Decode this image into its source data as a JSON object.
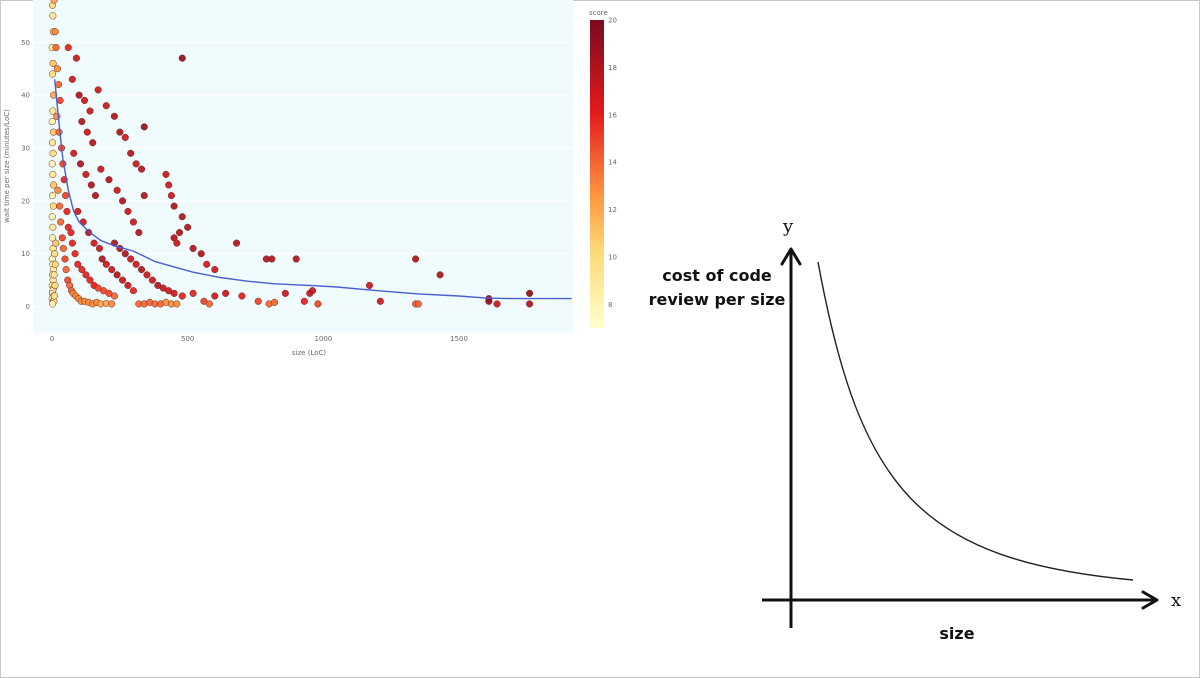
{
  "chart_data": [
    {
      "type": "scatter",
      "xlabel": "size (LoC)",
      "ylabel": "wait time per size (minutes/LoC)",
      "xlim": [
        -70,
        1920
      ],
      "ylim": [
        -5,
        58
      ],
      "x_ticks": [
        "0",
        "500",
        "1000",
        "1500"
      ],
      "x_tick_values": [
        0,
        500,
        1000,
        1500
      ],
      "y_ticks": [
        "0",
        "10",
        "20",
        "30",
        "40",
        "50"
      ],
      "y_tick_values": [
        0,
        10,
        20,
        30,
        40,
        50
      ],
      "colorbar": {
        "title": "score",
        "range": [
          7,
          20
        ],
        "ticks": [
          "8",
          "10",
          "12",
          "14",
          "16",
          "18",
          "20"
        ],
        "tick_values": [
          8,
          10,
          12,
          14,
          16,
          18,
          20
        ]
      },
      "background": "#f0fbfd",
      "trend_color": "#4a5fd0",
      "trend": {
        "x": [
          10,
          25,
          40,
          60,
          80,
          100,
          140,
          180,
          230,
          300,
          380,
          450,
          520,
          620,
          720,
          820,
          950,
          1050,
          1200,
          1350,
          1500,
          1600,
          1700,
          1800,
          1915
        ],
        "y": [
          43,
          35,
          28,
          22,
          18,
          16,
          14,
          12.5,
          11.5,
          10.5,
          8.5,
          7.5,
          6.5,
          5.5,
          4.8,
          4.3,
          4,
          3.7,
          3,
          2.4,
          2,
          1.6,
          1.5,
          1.5,
          1.5
        ]
      },
      "points": [
        [
          2,
          57,
          10
        ],
        [
          3,
          55,
          9
        ],
        [
          5,
          52,
          11
        ],
        [
          1,
          49,
          9
        ],
        [
          4,
          46,
          11
        ],
        [
          2,
          44,
          10
        ],
        [
          6,
          40,
          12
        ],
        [
          3,
          37,
          9
        ],
        [
          1,
          35,
          8
        ],
        [
          5,
          33,
          11
        ],
        [
          2,
          31,
          9
        ],
        [
          4,
          29,
          10
        ],
        [
          1,
          27,
          8
        ],
        [
          3,
          25,
          9
        ],
        [
          6,
          23,
          11
        ],
        [
          2,
          21,
          8
        ],
        [
          5,
          19,
          10
        ],
        [
          1,
          17,
          8
        ],
        [
          3,
          15,
          9
        ],
        [
          2,
          13,
          8
        ],
        [
          4,
          11,
          9
        ],
        [
          1,
          9,
          8
        ],
        [
          3,
          8,
          8
        ],
        [
          5,
          7,
          9
        ],
        [
          2,
          6,
          8
        ],
        [
          4,
          5,
          9
        ],
        [
          1,
          4,
          8
        ],
        [
          6,
          3.5,
          9
        ],
        [
          3,
          3,
          8
        ],
        [
          2,
          2.5,
          8
        ],
        [
          5,
          2,
          9
        ],
        [
          1,
          1.5,
          8
        ],
        [
          4,
          1,
          8
        ],
        [
          7,
          1,
          9
        ],
        [
          2,
          0.5,
          8
        ],
        [
          9,
          2,
          9
        ],
        [
          11,
          4,
          10
        ],
        [
          8,
          6,
          9
        ],
        [
          12,
          8,
          10
        ],
        [
          10,
          10,
          10
        ],
        [
          14,
          12,
          11
        ],
        [
          8,
          58,
          12
        ],
        [
          12,
          52,
          13
        ],
        [
          15,
          49,
          14
        ],
        [
          20,
          45,
          13
        ],
        [
          24,
          42,
          14
        ],
        [
          30,
          39,
          15
        ],
        [
          18,
          36,
          13
        ],
        [
          26,
          33,
          14
        ],
        [
          35,
          30,
          15
        ],
        [
          40,
          27,
          15
        ],
        [
          45,
          24,
          16
        ],
        [
          22,
          22,
          13
        ],
        [
          50,
          21,
          15
        ],
        [
          28,
          19,
          14
        ],
        [
          55,
          18,
          16
        ],
        [
          32,
          16,
          14
        ],
        [
          60,
          15,
          16
        ],
        [
          38,
          13,
          15
        ],
        [
          70,
          14,
          16
        ],
        [
          42,
          11,
          14
        ],
        [
          75,
          12,
          16
        ],
        [
          48,
          9,
          15
        ],
        [
          85,
          10,
          16
        ],
        [
          52,
          7,
          14
        ],
        [
          95,
          8,
          16
        ],
        [
          58,
          5,
          15
        ],
        [
          110,
          7,
          16
        ],
        [
          65,
          4,
          14
        ],
        [
          125,
          6,
          16
        ],
        [
          72,
          3,
          14
        ],
        [
          140,
          5,
          16
        ],
        [
          78,
          2.5,
          13
        ],
        [
          155,
          4,
          16
        ],
        [
          88,
          2,
          13
        ],
        [
          170,
          3.5,
          15
        ],
        [
          98,
          1.5,
          13
        ],
        [
          190,
          3,
          15
        ],
        [
          108,
          1,
          13
        ],
        [
          210,
          2.5,
          15
        ],
        [
          120,
          1,
          13
        ],
        [
          230,
          2,
          14
        ],
        [
          135,
          0.8,
          13
        ],
        [
          150,
          0.5,
          13
        ],
        [
          165,
          0.8,
          13
        ],
        [
          180,
          0.5,
          12
        ],
        [
          200,
          0.6,
          12
        ],
        [
          220,
          0.5,
          13
        ],
        [
          60,
          49,
          16
        ],
        [
          90,
          47,
          17
        ],
        [
          75,
          43,
          17
        ],
        [
          100,
          40,
          18
        ],
        [
          120,
          39,
          17
        ],
        [
          140,
          37,
          17
        ],
        [
          110,
          35,
          18
        ],
        [
          130,
          33,
          17
        ],
        [
          150,
          31,
          18
        ],
        [
          80,
          29,
          17
        ],
        [
          105,
          27,
          18
        ],
        [
          125,
          25,
          17
        ],
        [
          145,
          23,
          18
        ],
        [
          160,
          21,
          18
        ],
        [
          95,
          18,
          17
        ],
        [
          115,
          16,
          17
        ],
        [
          135,
          14,
          18
        ],
        [
          155,
          12,
          17
        ],
        [
          175,
          11,
          17
        ],
        [
          185,
          9,
          18
        ],
        [
          200,
          8,
          17
        ],
        [
          220,
          7,
          17
        ],
        [
          240,
          6,
          18
        ],
        [
          260,
          5,
          17
        ],
        [
          280,
          4,
          17
        ],
        [
          300,
          3,
          16
        ],
        [
          170,
          41,
          17
        ],
        [
          200,
          38,
          17
        ],
        [
          230,
          36,
          18
        ],
        [
          250,
          33,
          18
        ],
        [
          270,
          32,
          17
        ],
        [
          290,
          29,
          18
        ],
        [
          310,
          27,
          17
        ],
        [
          180,
          26,
          17
        ],
        [
          210,
          24,
          18
        ],
        [
          240,
          22,
          17
        ],
        [
          260,
          20,
          18
        ],
        [
          280,
          18,
          17
        ],
        [
          300,
          16,
          17
        ],
        [
          320,
          14,
          18
        ],
        [
          230,
          12,
          18
        ],
        [
          250,
          11,
          18
        ],
        [
          270,
          10,
          18
        ],
        [
          290,
          9,
          17
        ],
        [
          310,
          8,
          17
        ],
        [
          330,
          7,
          18
        ],
        [
          350,
          6,
          17
        ],
        [
          370,
          5,
          17
        ],
        [
          390,
          4,
          18
        ],
        [
          410,
          3.5,
          17
        ],
        [
          430,
          3,
          17
        ],
        [
          450,
          2.5,
          17
        ],
        [
          340,
          34,
          19
        ],
        [
          330,
          26,
          18
        ],
        [
          340,
          21,
          18
        ],
        [
          420,
          25,
          17
        ],
        [
          430,
          23,
          17
        ],
        [
          440,
          21,
          17
        ],
        [
          450,
          19,
          18
        ],
        [
          480,
          17,
          18
        ],
        [
          500,
          15,
          18
        ],
        [
          470,
          14,
          18
        ],
        [
          450,
          13,
          18
        ],
        [
          460,
          12,
          17
        ],
        [
          520,
          11,
          18
        ],
        [
          550,
          10,
          18
        ],
        [
          570,
          8,
          17
        ],
        [
          600,
          7,
          17
        ],
        [
          480,
          47,
          19
        ],
        [
          680,
          12,
          18
        ],
        [
          790,
          9,
          18
        ],
        [
          810,
          9,
          18
        ],
        [
          900,
          9,
          18
        ],
        [
          320,
          0.5,
          14
        ],
        [
          340,
          0.5,
          14
        ],
        [
          360,
          0.8,
          14
        ],
        [
          380,
          0.5,
          14
        ],
        [
          400,
          0.5,
          14
        ],
        [
          420,
          0.8,
          13
        ],
        [
          440,
          0.5,
          13
        ],
        [
          460,
          0.5,
          13
        ],
        [
          480,
          2,
          16
        ],
        [
          520,
          2.5,
          16
        ],
        [
          560,
          1,
          15
        ],
        [
          580,
          0.5,
          14
        ],
        [
          600,
          2,
          17
        ],
        [
          640,
          2.5,
          17
        ],
        [
          700,
          2,
          16
        ],
        [
          760,
          1,
          15
        ],
        [
          800,
          0.5,
          14
        ],
        [
          820,
          0.8,
          14
        ],
        [
          860,
          2.5,
          17
        ],
        [
          930,
          1,
          16
        ],
        [
          950,
          2.5,
          17
        ],
        [
          960,
          3,
          17
        ],
        [
          980,
          0.5,
          15
        ],
        [
          1170,
          4,
          17
        ],
        [
          1210,
          1,
          17
        ],
        [
          1340,
          0.5,
          14
        ],
        [
          1350,
          0.5,
          14
        ],
        [
          1340,
          9,
          18
        ],
        [
          1430,
          6,
          18
        ],
        [
          1610,
          1.5,
          19
        ],
        [
          1610,
          1,
          19
        ],
        [
          1640,
          0.5,
          17
        ],
        [
          1760,
          0.5,
          18
        ],
        [
          1760,
          2.5,
          19
        ]
      ]
    },
    {
      "type": "line",
      "xlabel": "size",
      "ylabel": "cost of code review per size",
      "x_axis_letter": "x",
      "y_axis_letter": "y"
    }
  ]
}
